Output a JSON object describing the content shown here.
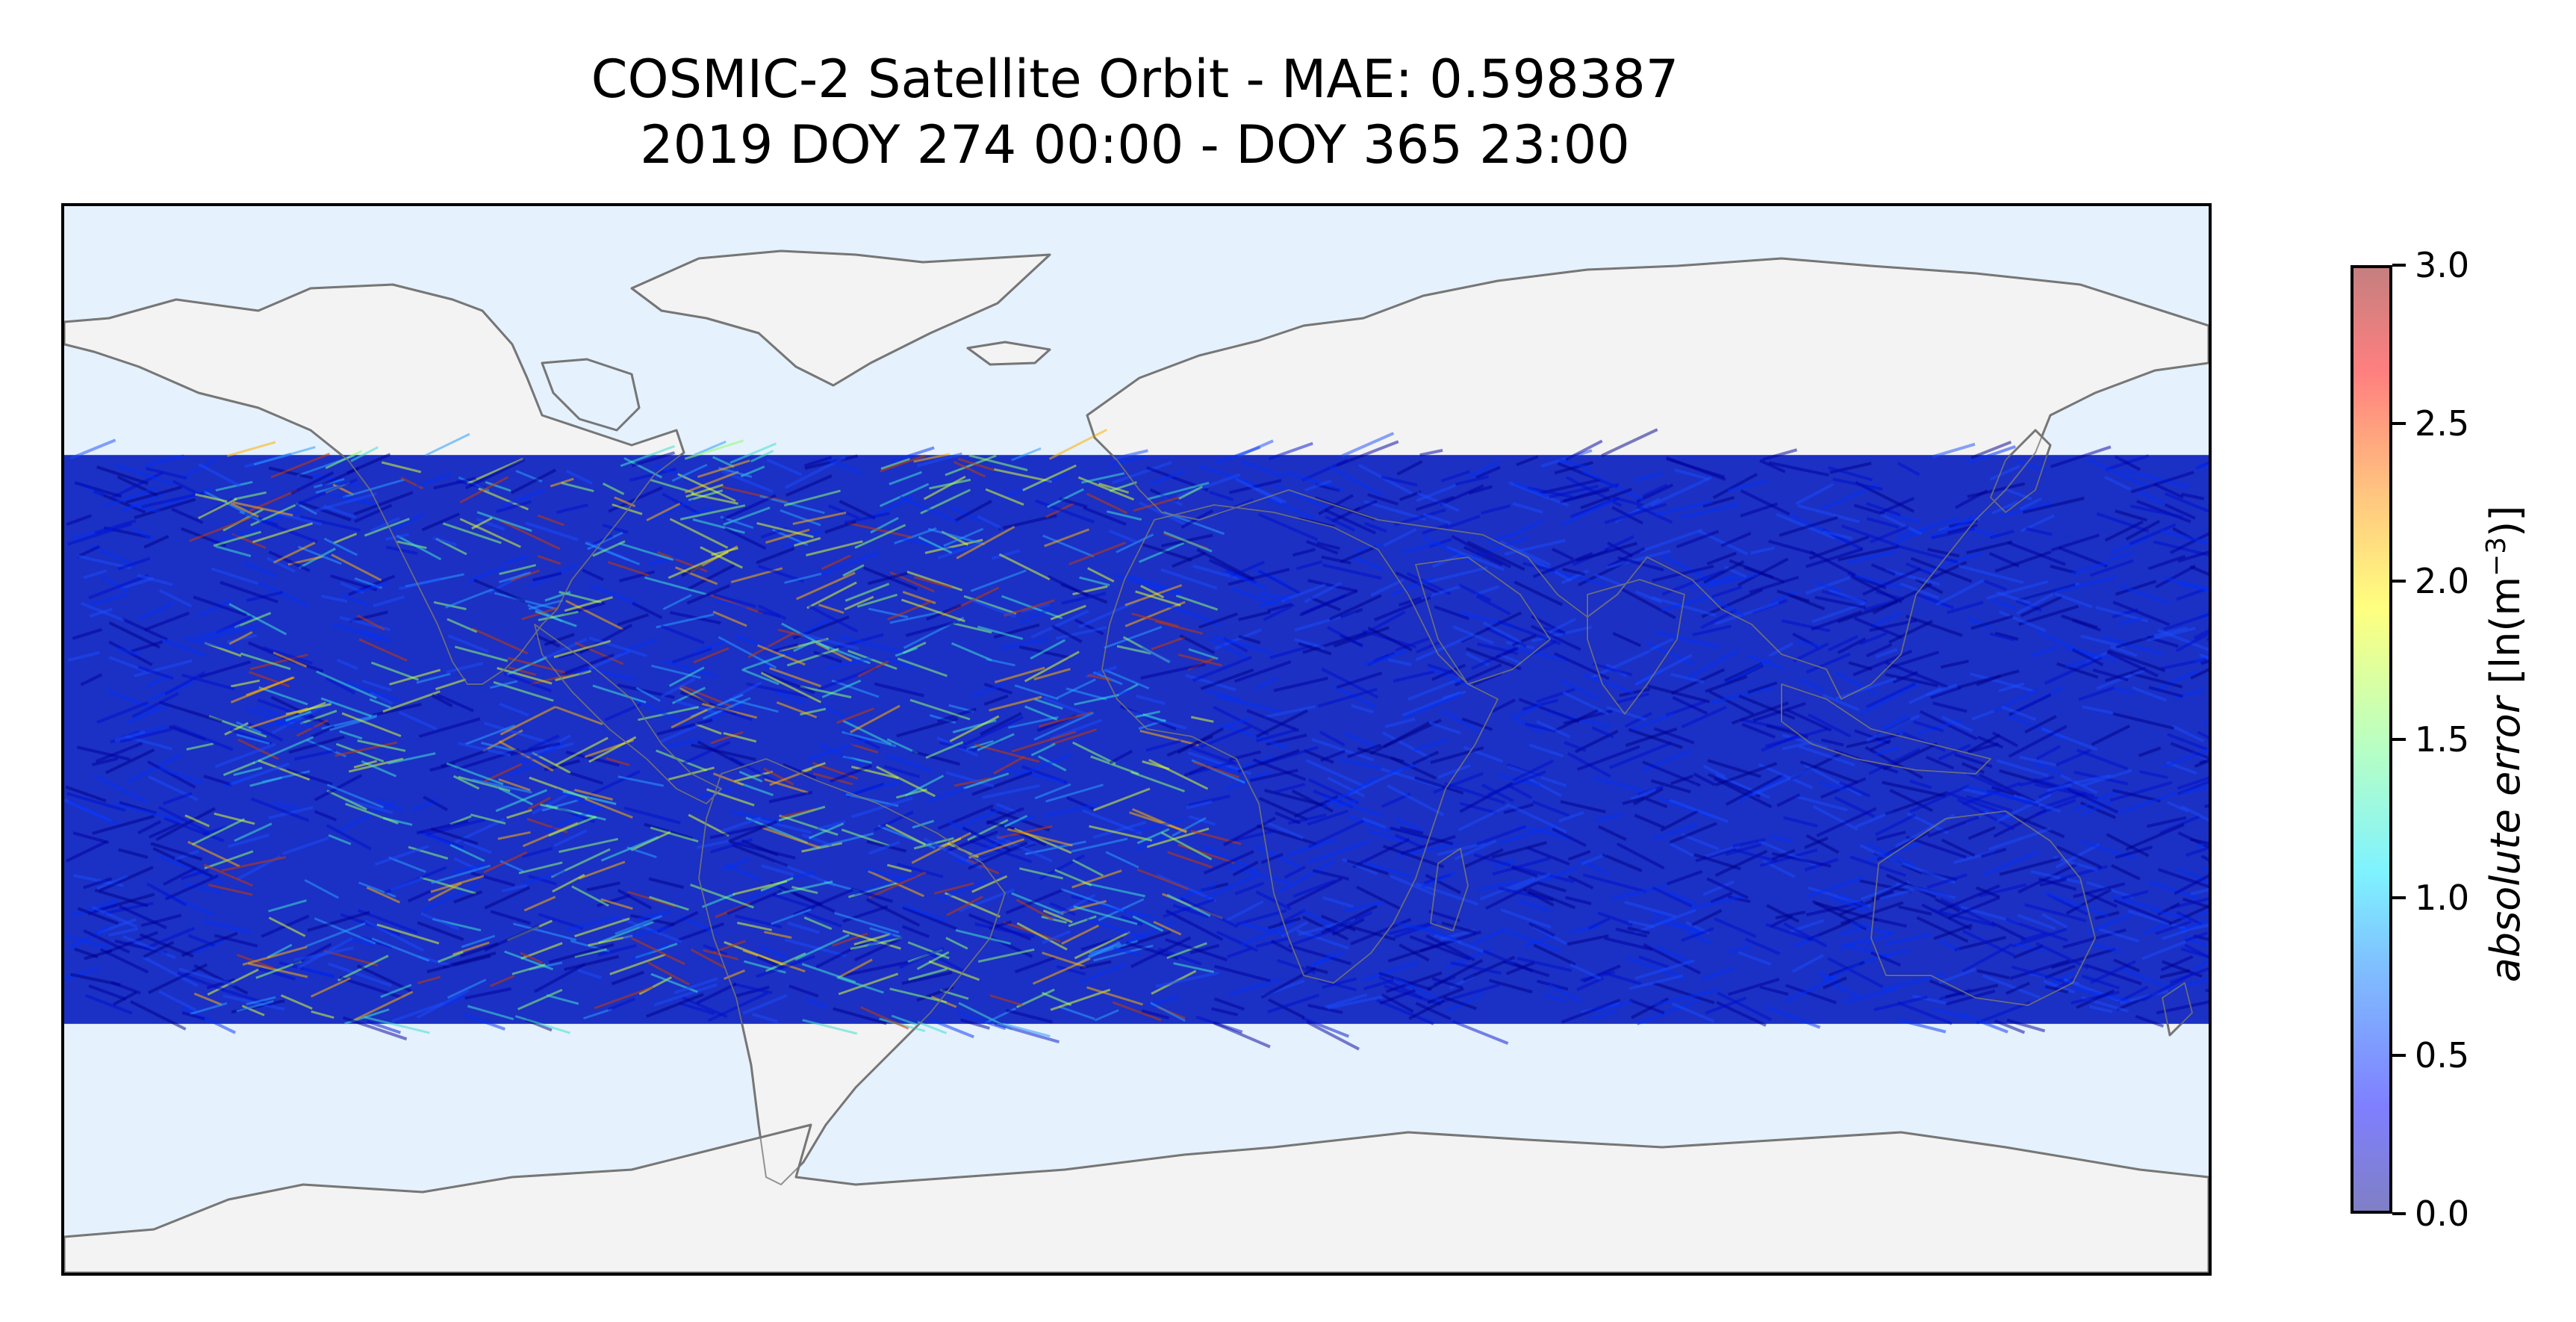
{
  "title": {
    "line1": "COSMIC-2 Satellite Orbit - MAE: 0.598387",
    "line2": "2019 DOY 274 00:00 - DOY 365 23:00"
  },
  "map": {
    "projection": "PlateCarree",
    "extent_lon": [
      -180,
      180
    ],
    "extent_lat": [
      -90,
      90
    ],
    "ocean_color": "#e5f1fc",
    "land_color": "#f3f3f3",
    "coastline_color": "#6e6e6e",
    "track_band_lat": [
      -48,
      48
    ],
    "high_error_region_lon": [
      -160,
      10
    ]
  },
  "colorbar": {
    "colormap": "jet",
    "alpha": 0.5,
    "range": [
      0.0,
      3.0
    ],
    "ticks": [
      "0.0",
      "0.5",
      "1.0",
      "1.5",
      "2.0",
      "2.5",
      "3.0"
    ],
    "label_main": "absolute error",
    "label_unit_open": " [ln(m",
    "label_unit_exp": "−3",
    "label_unit_close": ")]"
  }
}
